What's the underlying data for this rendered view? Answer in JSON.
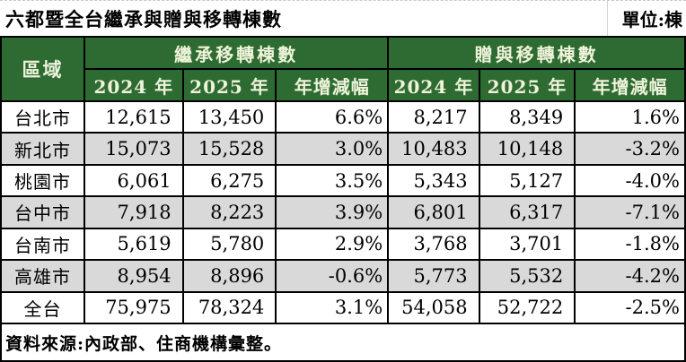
{
  "title": "六都暨全台繼承與贈與移轉棟數",
  "unit_label": "單位:棟",
  "table": {
    "region_header": "區域",
    "groups": [
      {
        "label": "繼承移轉棟數",
        "columns": [
          "2024 年",
          "2025 年",
          "年增減幅"
        ]
      },
      {
        "label": "贈與移轉棟數",
        "columns": [
          "2024 年",
          "2025 年",
          "年增減幅"
        ]
      }
    ],
    "rows": [
      {
        "region": "台北市",
        "values": [
          "12,615",
          "13,450",
          "6.6%",
          "8,217",
          "8,349",
          "1.6%"
        ]
      },
      {
        "region": "新北市",
        "values": [
          "15,073",
          "15,528",
          "3.0%",
          "10,483",
          "10,148",
          "-3.2%"
        ]
      },
      {
        "region": "桃園市",
        "values": [
          "6,061",
          "6,275",
          "3.5%",
          "5,343",
          "5,127",
          "-4.0%"
        ]
      },
      {
        "region": "台中市",
        "values": [
          "7,918",
          "8,223",
          "3.9%",
          "6,801",
          "6,317",
          "-7.1%"
        ]
      },
      {
        "region": "台南市",
        "values": [
          "5,619",
          "5,780",
          "2.9%",
          "3,768",
          "3,701",
          "-1.8%"
        ]
      },
      {
        "region": "高雄市",
        "values": [
          "8,954",
          "8,896",
          "-0.6%",
          "5,773",
          "5,532",
          "-4.2%"
        ]
      },
      {
        "region": "全台",
        "values": [
          "75,975",
          "78,324",
          "3.1%",
          "54,058",
          "52,722",
          "-2.5%"
        ]
      }
    ]
  },
  "footer": "資料來源:內政部、住商機構彙整。",
  "colors": {
    "header_bg": "#2e6b33",
    "header_text": "#eef3da",
    "row_alt_bg": "#d9d9d9",
    "border": "#000000"
  },
  "chart_data": {
    "type": "table",
    "title": "六都暨全台繼承與贈與移轉棟數",
    "unit": "棟",
    "column_groups": [
      "繼承移轉棟數",
      "贈與移轉棟數"
    ],
    "columns": [
      "區域",
      "繼承2024年",
      "繼承2025年",
      "繼承年增減幅",
      "贈與2024年",
      "贈與2025年",
      "贈與年增減幅"
    ],
    "rows": [
      {
        "region": "台北市",
        "inheritance_2024": 12615,
        "inheritance_2025": 13450,
        "inheritance_yoy_pct": 6.6,
        "gift_2024": 8217,
        "gift_2025": 8349,
        "gift_yoy_pct": 1.6
      },
      {
        "region": "新北市",
        "inheritance_2024": 15073,
        "inheritance_2025": 15528,
        "inheritance_yoy_pct": 3.0,
        "gift_2024": 10483,
        "gift_2025": 10148,
        "gift_yoy_pct": -3.2
      },
      {
        "region": "桃園市",
        "inheritance_2024": 6061,
        "inheritance_2025": 6275,
        "inheritance_yoy_pct": 3.5,
        "gift_2024": 5343,
        "gift_2025": 5127,
        "gift_yoy_pct": -4.0
      },
      {
        "region": "台中市",
        "inheritance_2024": 7918,
        "inheritance_2025": 8223,
        "inheritance_yoy_pct": 3.9,
        "gift_2024": 6801,
        "gift_2025": 6317,
        "gift_yoy_pct": -7.1
      },
      {
        "region": "台南市",
        "inheritance_2024": 5619,
        "inheritance_2025": 5780,
        "inheritance_yoy_pct": 2.9,
        "gift_2024": 3768,
        "gift_2025": 3701,
        "gift_yoy_pct": -1.8
      },
      {
        "region": "高雄市",
        "inheritance_2024": 8954,
        "inheritance_2025": 8896,
        "inheritance_yoy_pct": -0.6,
        "gift_2024": 5773,
        "gift_2025": 5532,
        "gift_yoy_pct": -4.2
      },
      {
        "region": "全台",
        "inheritance_2024": 75975,
        "inheritance_2025": 78324,
        "inheritance_yoy_pct": 3.1,
        "gift_2024": 54058,
        "gift_2025": 52722,
        "gift_yoy_pct": -2.5
      }
    ],
    "source": "內政部、住商機構彙整"
  }
}
